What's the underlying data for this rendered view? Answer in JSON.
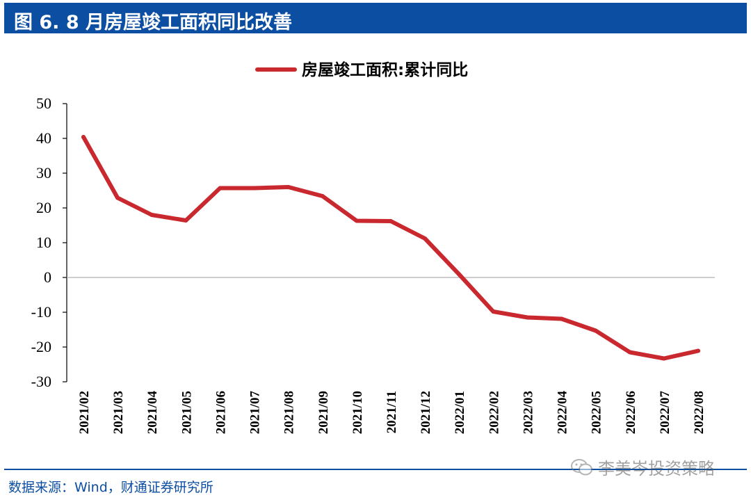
{
  "header": {
    "title": "图 6. 8 月房屋竣工面积同比改善"
  },
  "chart_data": {
    "type": "line",
    "title": "",
    "xlabel": "",
    "ylabel": "",
    "ylim": [
      -30,
      50
    ],
    "yticks": [
      50,
      40,
      30,
      20,
      10,
      0,
      -10,
      -20,
      -30
    ],
    "categories": [
      "2021/02",
      "2021/03",
      "2021/04",
      "2021/05",
      "2021/06",
      "2021/07",
      "2021/08",
      "2021/09",
      "2021/10",
      "2021/11",
      "2021/12",
      "2022/01",
      "2022/02",
      "2022/03",
      "2022/04",
      "2022/05",
      "2022/06",
      "2022/07",
      "2022/08"
    ],
    "series": [
      {
        "name": "房屋竣工面积:累计同比",
        "color": "#c8282e",
        "values": [
          40.4,
          22.9,
          18.0,
          16.4,
          25.7,
          25.7,
          26.0,
          23.4,
          16.3,
          16.2,
          11.2,
          0.9,
          -9.8,
          -11.5,
          -11.9,
          -15.3,
          -21.5,
          -23.3,
          -21.1
        ]
      }
    ],
    "legend": "top-center",
    "grid": false
  },
  "footer": {
    "source": "数据来源：Wind，财通证券研究所"
  },
  "watermark": {
    "text": "李美岑投资策略",
    "icon": "wechat-icon"
  }
}
